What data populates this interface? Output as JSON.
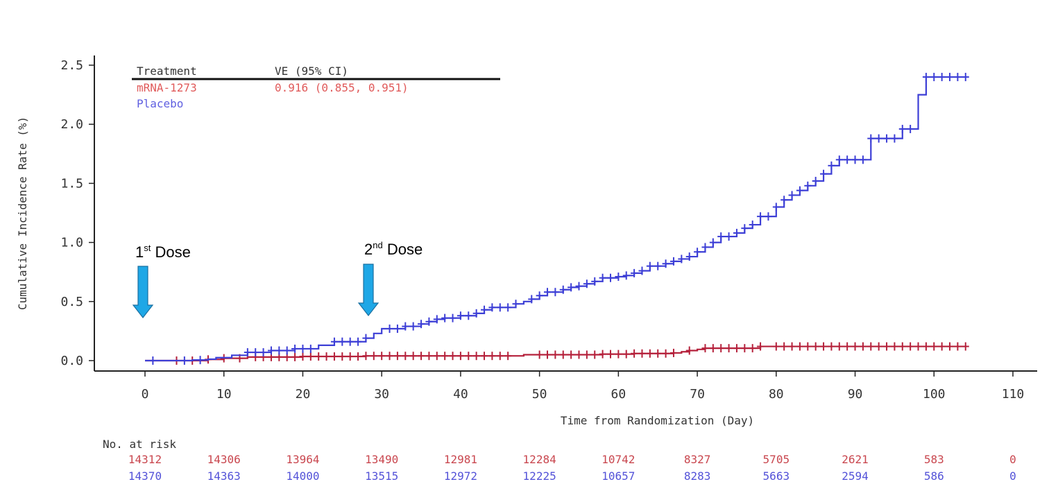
{
  "chart_data": {
    "type": "line",
    "subtype": "step",
    "xlabel": "Time from Randomization (Day)",
    "ylabel": "Cumulative Incidence Rate (%)",
    "xlim": [
      -4,
      113
    ],
    "ylim": [
      -0.08,
      2.55
    ],
    "xticks": [
      "0",
      "10",
      "20",
      "30",
      "40",
      "50",
      "60",
      "70",
      "80",
      "90",
      "100",
      "110"
    ],
    "yticks": [
      "0.0",
      "0.5",
      "1.0",
      "1.5",
      "2.0",
      "2.5"
    ],
    "legend": {
      "header_treatment": "Treatment",
      "header_ve": "VE (95% CI)",
      "entries": [
        {
          "name": "mRNA-1273",
          "ve": "0.916 (0.855, 0.951)"
        },
        {
          "name": "Placebo",
          "ve": ""
        }
      ]
    },
    "annotations": [
      {
        "base": "1",
        "sup": "st",
        "rest": " Dose",
        "x": 0
      },
      {
        "base": "2",
        "sup": "nd",
        "rest": " Dose",
        "x": 28
      }
    ],
    "series": [
      {
        "name": "mRNA-1273",
        "color": "#b5213b",
        "x": [
          0,
          5,
          8,
          10,
          13,
          20,
          28,
          48,
          58,
          62,
          67,
          68,
          69,
          70,
          71,
          78,
          104
        ],
        "y": [
          0,
          0,
          0.01,
          0.02,
          0.03,
          0.035,
          0.04,
          0.05,
          0.055,
          0.06,
          0.065,
          0.075,
          0.085,
          0.095,
          0.105,
          0.12,
          0.12
        ],
        "censor_x": [
          4,
          6,
          8,
          10,
          12,
          14,
          15,
          16,
          17,
          18,
          19,
          20,
          21,
          22,
          23,
          24,
          25,
          26,
          27,
          28,
          29,
          30,
          31,
          32,
          33,
          34,
          35,
          36,
          37,
          38,
          39,
          40,
          41,
          42,
          43,
          44,
          45,
          46,
          50,
          51,
          52,
          53,
          54,
          55,
          56,
          57,
          58,
          59,
          60,
          61,
          62,
          63,
          64,
          65,
          66,
          67,
          69,
          71,
          72,
          73,
          74,
          75,
          76,
          77,
          78,
          80,
          81,
          82,
          83,
          84,
          85,
          86,
          87,
          88,
          89,
          90,
          91,
          92,
          93,
          94,
          95,
          96,
          97,
          98,
          99,
          100,
          101,
          102,
          103,
          104
        ]
      },
      {
        "name": "Placebo",
        "color": "#3d3fd6",
        "x": [
          0,
          6,
          8,
          9,
          11,
          13,
          16,
          19,
          22,
          24,
          28,
          29,
          30,
          33,
          35,
          36,
          37,
          38,
          40,
          42,
          43,
          44,
          47,
          48,
          49,
          50,
          51,
          53,
          54,
          55,
          56,
          57,
          58,
          60,
          61,
          62,
          63,
          64,
          66,
          67,
          68,
          69,
          70,
          71,
          72,
          73,
          75,
          76,
          77,
          78,
          80,
          81,
          82,
          83,
          84,
          85,
          86,
          87,
          88,
          92,
          96,
          98,
          99,
          104
        ],
        "y": [
          0,
          0.005,
          0.012,
          0.025,
          0.045,
          0.07,
          0.085,
          0.1,
          0.13,
          0.16,
          0.19,
          0.23,
          0.27,
          0.29,
          0.31,
          0.33,
          0.35,
          0.36,
          0.38,
          0.4,
          0.43,
          0.45,
          0.48,
          0.5,
          0.52,
          0.55,
          0.58,
          0.6,
          0.62,
          0.63,
          0.65,
          0.67,
          0.7,
          0.71,
          0.72,
          0.74,
          0.76,
          0.8,
          0.82,
          0.84,
          0.86,
          0.88,
          0.92,
          0.96,
          1.0,
          1.05,
          1.08,
          1.12,
          1.15,
          1.22,
          1.3,
          1.36,
          1.4,
          1.44,
          1.48,
          1.52,
          1.58,
          1.65,
          1.7,
          1.88,
          1.96,
          2.25,
          2.4,
          2.4
        ],
        "censor_x": [
          1,
          5,
          7,
          13,
          14,
          15,
          16,
          17,
          18,
          19,
          20,
          21,
          24,
          25,
          26,
          27,
          28,
          31,
          32,
          33,
          34,
          35,
          36,
          37,
          38,
          39,
          40,
          41,
          42,
          43,
          44,
          45,
          46,
          47,
          49,
          50,
          51,
          52,
          53,
          54,
          55,
          56,
          57,
          58,
          59,
          60,
          61,
          62,
          63,
          64,
          65,
          66,
          67,
          68,
          69,
          70,
          71,
          72,
          73,
          74,
          75,
          76,
          77,
          78,
          79,
          80,
          81,
          82,
          83,
          84,
          85,
          86,
          87,
          88,
          89,
          90,
          91,
          92,
          93,
          94,
          95,
          96,
          97,
          99,
          100,
          101,
          102,
          103,
          104
        ]
      }
    ]
  },
  "risk_table": {
    "title": "No. at risk",
    "rows": [
      {
        "name": "mRNA-1273",
        "color": "#c9474f",
        "values": [
          "14312",
          "14306",
          "13964",
          "13490",
          "12981",
          "12284",
          "10742",
          "8327",
          "5705",
          "2621",
          "583",
          "0"
        ]
      },
      {
        "name": "Placebo",
        "color": "#5352d8",
        "values": [
          "14370",
          "14363",
          "14000",
          "13515",
          "12972",
          "12225",
          "10657",
          "8283",
          "5663",
          "2594",
          "586",
          "0"
        ]
      }
    ]
  },
  "colors": {
    "axis": "#222222",
    "text": "#333333",
    "arrow_fill": "#1ea7e6",
    "arrow_stroke": "#1a6fa0"
  }
}
